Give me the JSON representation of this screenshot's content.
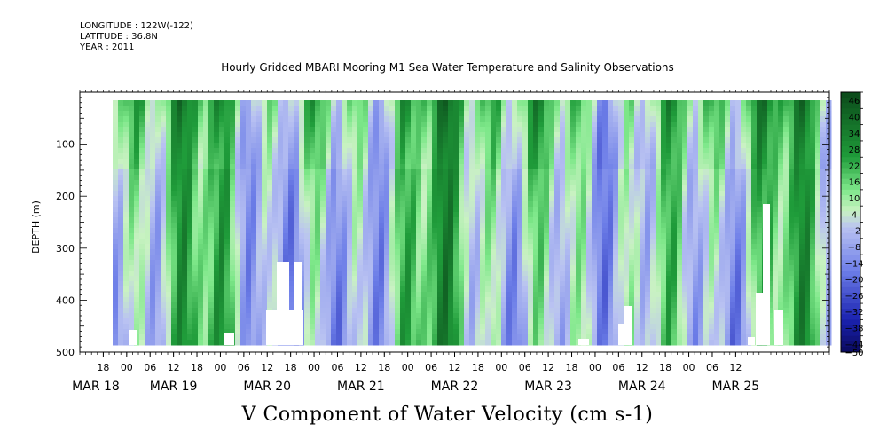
{
  "header": {
    "longitude": "LONGITUDE : 122W(-122)",
    "latitude": "LATITUDE : 36.8N",
    "year": "YEAR : 2011"
  },
  "chart_data": {
    "type": "heatmap",
    "title": "Hourly Gridded MBARI Mooring M1 Sea Water Temperature and Salinity Observations",
    "subtitle": "V Component of Water Velocity (cm s-1)",
    "ylabel": "DEPTH (m)",
    "xlabel": "",
    "ylim": [
      500,
      0
    ],
    "y_ticks": [
      100,
      200,
      300,
      400,
      500
    ],
    "x_range_hours": [
      0,
      192
    ],
    "x_hour_ticks": [
      "18",
      "00",
      "06",
      "12",
      "18",
      "00",
      "06",
      "12",
      "18",
      "00",
      "06",
      "12",
      "18",
      "00",
      "06",
      "12",
      "18",
      "00",
      "06",
      "12",
      "18",
      "00",
      "06",
      "12",
      "18",
      "00",
      "06",
      "12"
    ],
    "x_date_labels": [
      "MAR 18",
      "MAR 19",
      "MAR 20",
      "MAR 21",
      "MAR 22",
      "MAR 23",
      "MAR 24",
      "MAR 25"
    ],
    "colorbar": {
      "levels": [
        46,
        40,
        34,
        28,
        22,
        16,
        10,
        4,
        -2,
        -8,
        -14,
        -20,
        -26,
        -32,
        -38,
        -44,
        -50
      ],
      "colors": {
        "strong_pos": "#0b4a1a",
        "mid_pos": "#1f9c3a",
        "low_pos": "#7ee88a",
        "near_zero": "#c9f2c2",
        "low_neg": "#b9c2f2",
        "mid_neg": "#6d7ee8",
        "strong_neg": "#1a22b0",
        "extreme_neg": "#0a0a5e"
      }
    },
    "grid": false,
    "legend": "right"
  }
}
